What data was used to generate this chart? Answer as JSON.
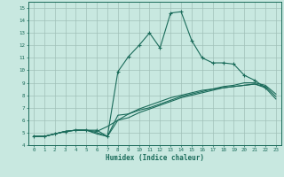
{
  "xlabel": "Humidex (Indice chaleur)",
  "bg_color": "#c8e8e0",
  "line_color": "#1a6b5a",
  "grid_color": "#a0c0b8",
  "xlim": [
    -0.5,
    23.5
  ],
  "ylim": [
    4,
    15.5
  ],
  "xticks": [
    0,
    1,
    2,
    3,
    4,
    5,
    6,
    7,
    8,
    9,
    10,
    11,
    12,
    13,
    14,
    15,
    16,
    17,
    18,
    19,
    20,
    21,
    22,
    23
  ],
  "yticks": [
    4,
    5,
    6,
    7,
    8,
    9,
    10,
    11,
    12,
    13,
    14,
    15
  ],
  "series": [
    [
      4.7,
      4.7,
      4.9,
      5.1,
      5.2,
      5.2,
      5.2,
      4.7,
      9.9,
      11.1,
      12.0,
      13.0,
      11.8,
      14.6,
      14.7,
      12.4,
      11.0,
      10.6,
      10.6,
      10.5,
      9.6,
      9.2,
      8.6,
      null
    ],
    [
      4.7,
      4.7,
      4.9,
      5.1,
      5.2,
      5.2,
      4.9,
      4.7,
      6.4,
      6.5,
      6.8,
      7.0,
      7.3,
      7.6,
      7.9,
      8.1,
      8.3,
      8.5,
      8.7,
      8.8,
      9.0,
      9.0,
      8.8,
      8.1
    ],
    [
      4.7,
      4.7,
      4.9,
      5.1,
      5.2,
      5.2,
      5.0,
      4.7,
      6.0,
      6.2,
      6.6,
      6.9,
      7.2,
      7.5,
      7.8,
      8.0,
      8.2,
      8.4,
      8.6,
      8.7,
      8.8,
      8.9,
      8.7,
      7.9
    ],
    [
      4.7,
      4.7,
      4.9,
      5.1,
      5.2,
      5.2,
      5.1,
      5.5,
      6.0,
      6.5,
      6.9,
      7.2,
      7.5,
      7.8,
      8.0,
      8.2,
      8.4,
      8.5,
      8.6,
      8.7,
      8.8,
      8.9,
      8.6,
      7.7
    ]
  ],
  "xlabel_fontsize": 5.5,
  "tick_fontsize": 4.2,
  "marker_size": 3.0,
  "linewidth": 0.8
}
